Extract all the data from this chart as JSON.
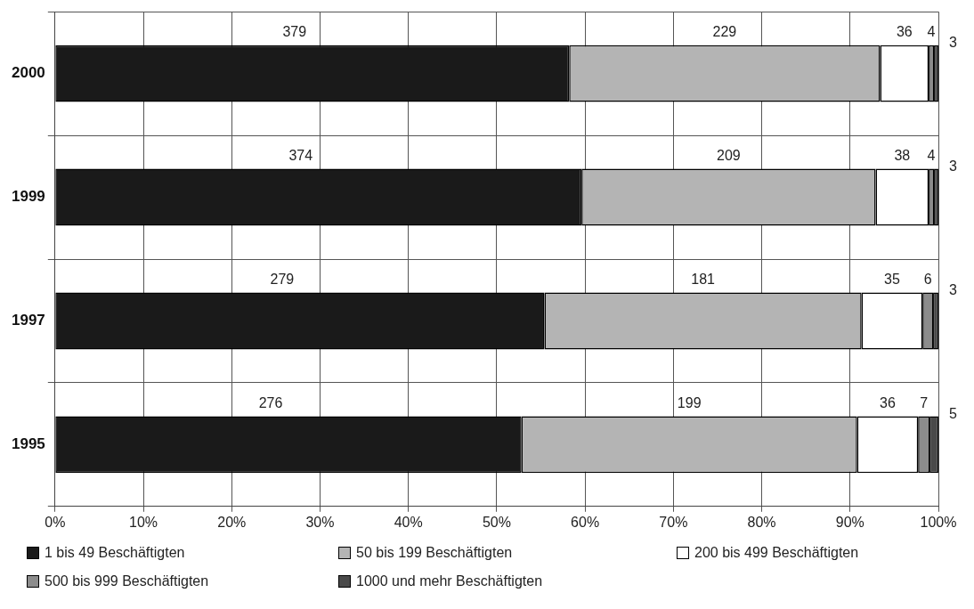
{
  "chart_data": {
    "type": "bar",
    "orientation": "horizontal",
    "stacked": true,
    "categories": [
      "2000",
      "1999",
      "1997",
      "1995"
    ],
    "series": [
      {
        "name": "1 bis 49 Beschäftigten",
        "color": "#1a1a1a",
        "values": [
          58.2,
          59.6,
          55.4,
          52.8
        ]
      },
      {
        "name": "50 bis 199 Beschäftigten",
        "color": "#b4b4b4",
        "values": [
          35.2,
          33.3,
          35.9,
          38.0
        ]
      },
      {
        "name": "200 bis 499 Beschäftigten",
        "color": "#ffffff",
        "values": [
          5.5,
          6.0,
          6.9,
          6.9
        ]
      },
      {
        "name": "500 bis 999 Beschäftigten",
        "color": "#8c8c8c",
        "values": [
          0.6,
          0.6,
          1.2,
          1.3
        ]
      },
      {
        "name": "1000 und mehr Beschäftigten",
        "color": "#4a4a4a",
        "values": [
          0.5,
          0.5,
          0.6,
          1.0
        ]
      }
    ],
    "annotations": [
      "379",
      "229",
      "36",
      "4",
      "3",
      "374",
      "209",
      "38",
      "4",
      "3",
      "279",
      "181",
      "35",
      "6",
      "3",
      "276",
      "199",
      "36",
      "7",
      "5"
    ],
    "xlim": [
      0,
      100
    ],
    "xticks": [
      {
        "value": 0,
        "label": "0%"
      },
      {
        "value": 10,
        "label": "10%"
      },
      {
        "value": 20,
        "label": "20%"
      },
      {
        "value": 30,
        "label": "30%"
      },
      {
        "value": 40,
        "label": "40%"
      },
      {
        "value": 50,
        "label": "50%"
      },
      {
        "value": 60,
        "label": "60%"
      },
      {
        "value": 70,
        "label": "70%"
      },
      {
        "value": 80,
        "label": "80%"
      },
      {
        "value": 90,
        "label": "90%"
      },
      {
        "value": 100,
        "label": "100%"
      }
    ],
    "grid": true,
    "legend": "bottom"
  }
}
